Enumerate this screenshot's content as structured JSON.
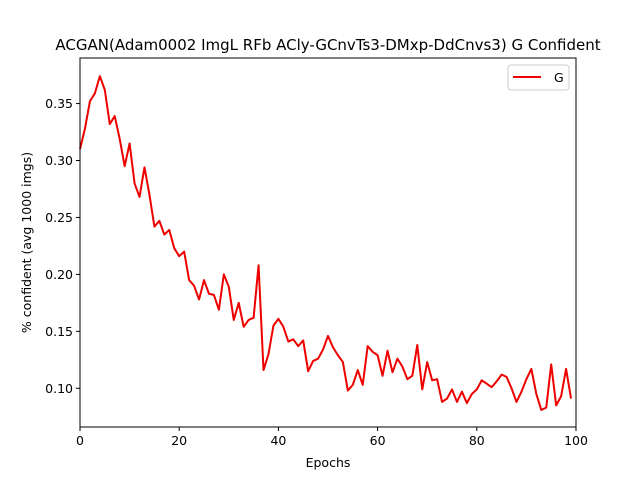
{
  "chart_data": {
    "type": "line",
    "title": "ACGAN(Adam0002 ImgL RFb ACly-GCnvTs3-DMxp-DdCnvs3) G Confident",
    "xlabel": "Epochs",
    "ylabel": "% confident (avg 1000 imgs)",
    "xlim": [
      0,
      100
    ],
    "ylim": [
      0.066,
      0.39
    ],
    "xticks": [
      0,
      20,
      40,
      60,
      80,
      100
    ],
    "xtick_labels": [
      "0",
      "20",
      "40",
      "60",
      "80",
      "100"
    ],
    "yticks": [
      0.1,
      0.15,
      0.2,
      0.25,
      0.3,
      0.35
    ],
    "ytick_labels": [
      "0.10",
      "0.15",
      "0.20",
      "0.25",
      "0.30",
      "0.35"
    ],
    "grid": false,
    "legend_position": "top-right",
    "series": [
      {
        "name": "G",
        "color": "#ee0000",
        "x": [
          0,
          1,
          2,
          3,
          4,
          5,
          6,
          7,
          8,
          9,
          10,
          11,
          12,
          13,
          14,
          15,
          16,
          17,
          18,
          19,
          20,
          21,
          22,
          23,
          24,
          25,
          26,
          27,
          28,
          29,
          30,
          31,
          32,
          33,
          34,
          35,
          36,
          37,
          38,
          39,
          40,
          41,
          42,
          43,
          44,
          45,
          46,
          47,
          48,
          49,
          50,
          51,
          52,
          53,
          54,
          55,
          56,
          57,
          58,
          59,
          60,
          61,
          62,
          63,
          64,
          65,
          66,
          67,
          68,
          69,
          70,
          71,
          72,
          73,
          74,
          75,
          76,
          77,
          78,
          79,
          80,
          81,
          82,
          83,
          84,
          85,
          86,
          87,
          88,
          89,
          90,
          91,
          92,
          93,
          94,
          95,
          96,
          97,
          98,
          99
        ],
        "values": [
          0.31,
          0.328,
          0.352,
          0.359,
          0.374,
          0.362,
          0.332,
          0.339,
          0.319,
          0.295,
          0.315,
          0.28,
          0.268,
          0.294,
          0.27,
          0.242,
          0.247,
          0.235,
          0.239,
          0.223,
          0.216,
          0.22,
          0.195,
          0.19,
          0.178,
          0.195,
          0.183,
          0.182,
          0.169,
          0.2,
          0.189,
          0.16,
          0.175,
          0.154,
          0.16,
          0.162,
          0.208,
          0.116,
          0.13,
          0.155,
          0.161,
          0.154,
          0.141,
          0.143,
          0.137,
          0.142,
          0.115,
          0.124,
          0.126,
          0.134,
          0.146,
          0.136,
          0.129,
          0.123,
          0.098,
          0.103,
          0.116,
          0.103,
          0.137,
          0.132,
          0.129,
          0.111,
          0.133,
          0.114,
          0.126,
          0.119,
          0.108,
          0.111,
          0.138,
          0.099,
          0.123,
          0.107,
          0.108,
          0.088,
          0.091,
          0.099,
          0.088,
          0.097,
          0.087,
          0.095,
          0.099,
          0.107,
          0.104,
          0.101,
          0.106,
          0.112,
          0.11,
          0.1,
          0.088,
          0.097,
          0.108,
          0.117,
          0.095,
          0.081,
          0.083,
          0.121,
          0.085,
          0.093,
          0.117,
          0.091
        ]
      }
    ]
  }
}
